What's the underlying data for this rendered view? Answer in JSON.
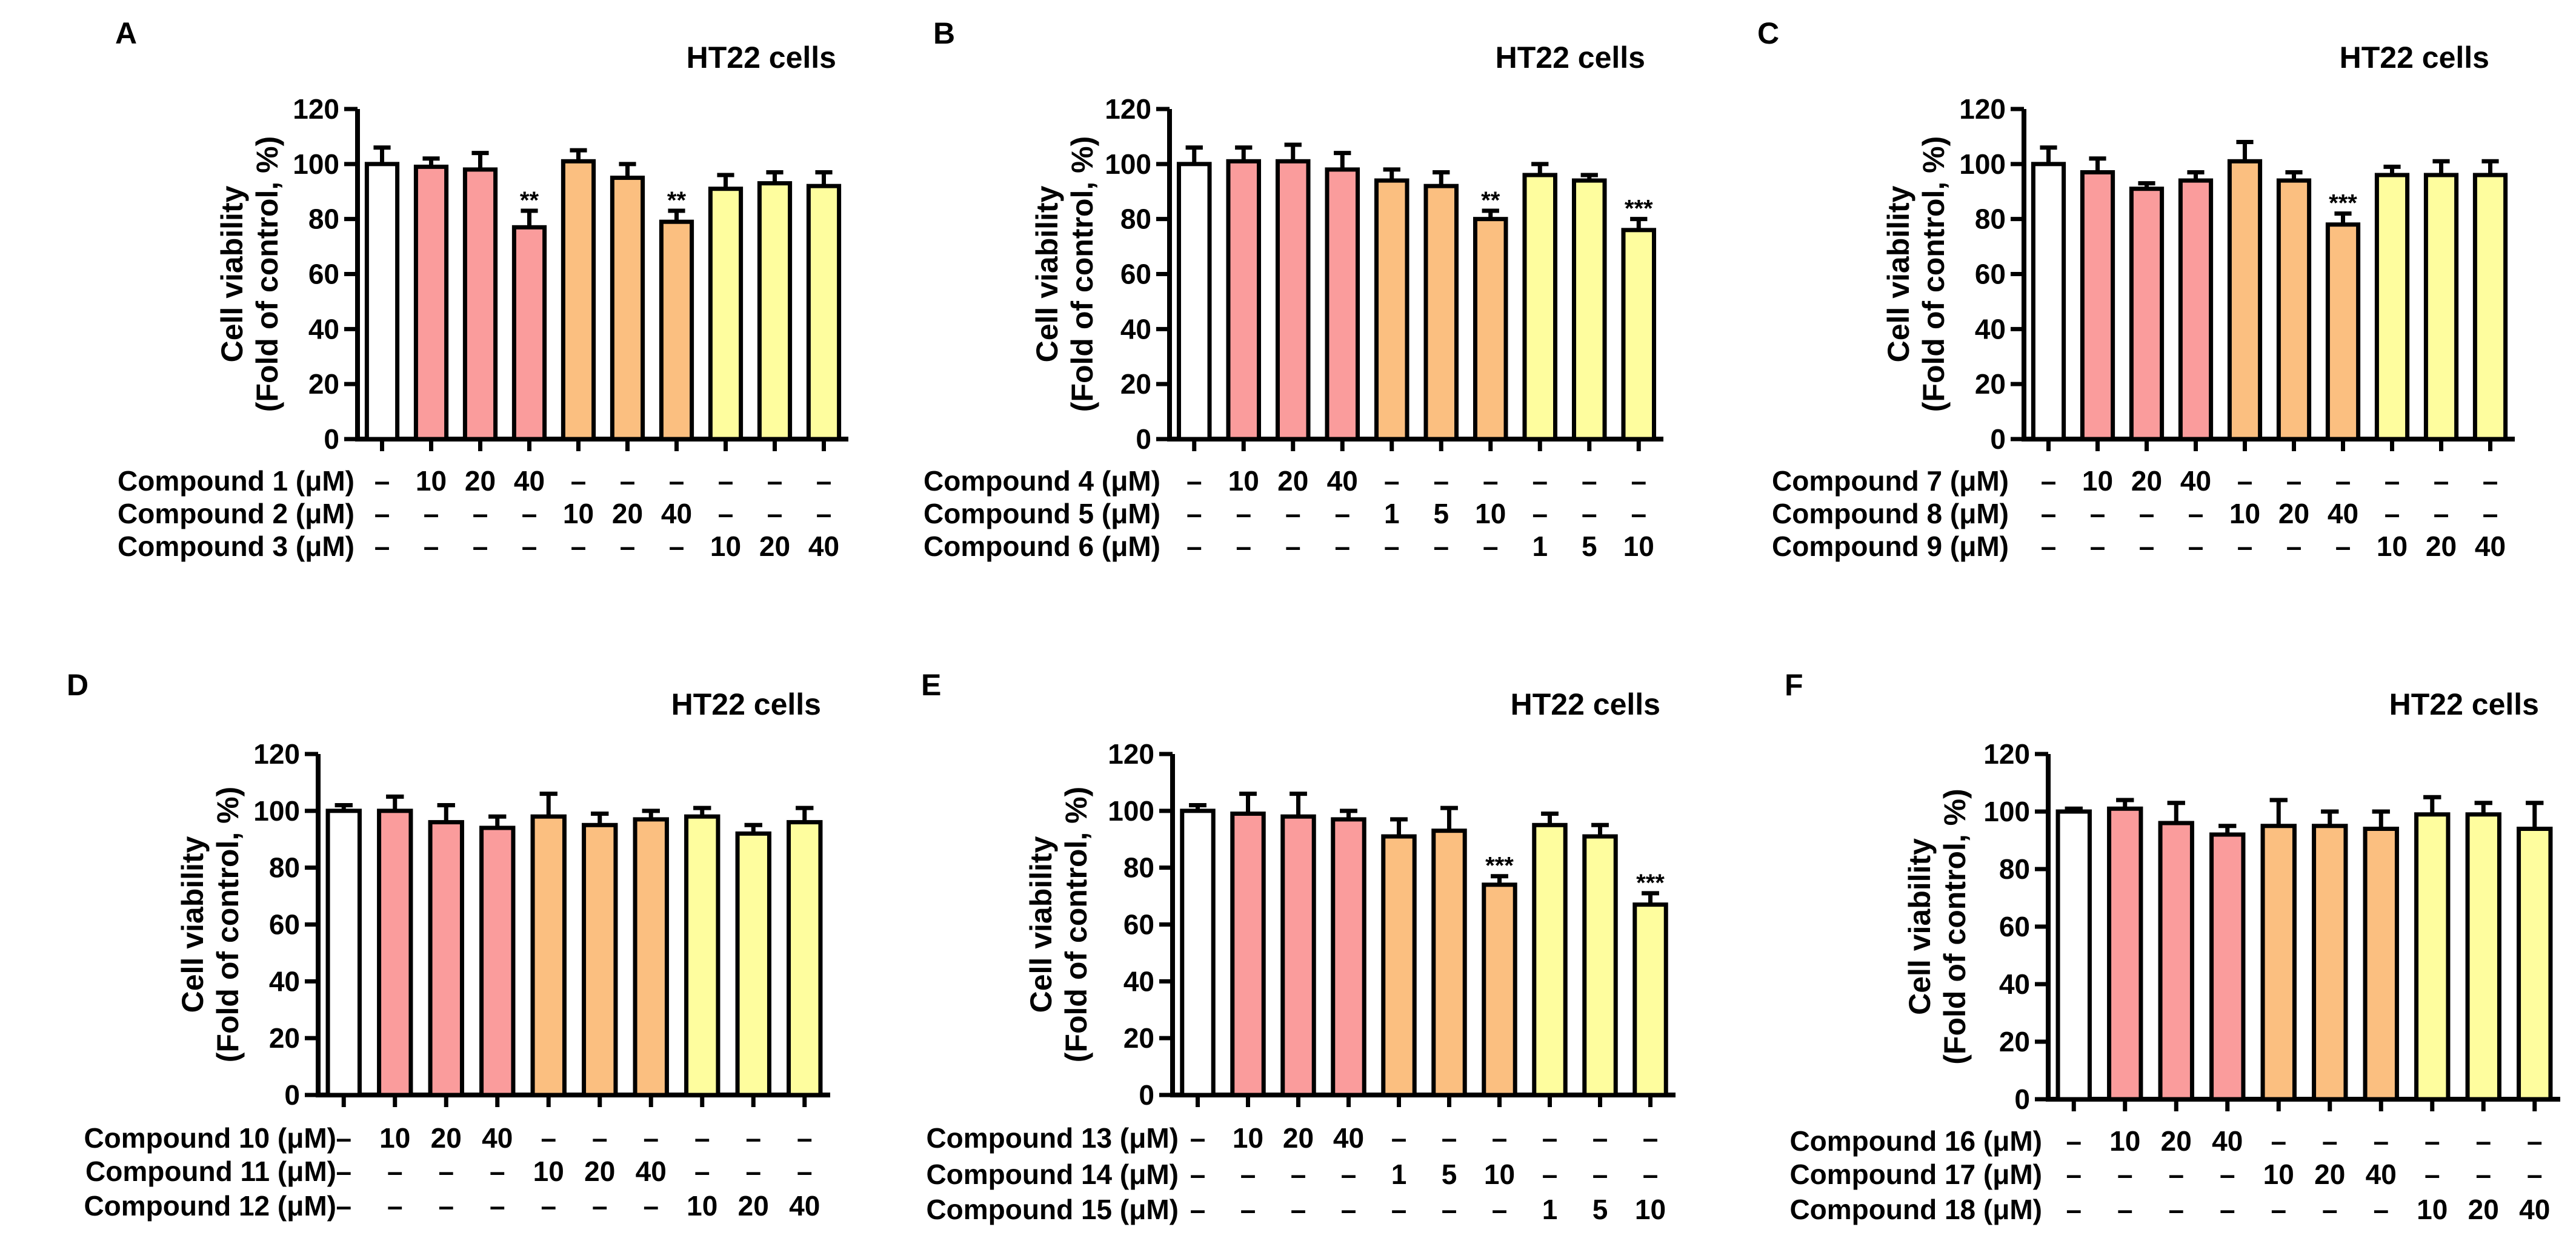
{
  "colors": {
    "control": "#ffffff",
    "pink": "#fa9c9c",
    "orange": "#fbbf80",
    "yellow": "#fefd9e",
    "edge": "#000000"
  },
  "chart_data": [
    {
      "type": "bar",
      "panel": "A",
      "title": "HT22 cells",
      "ylabel_line1": "Cell viability",
      "ylabel_line2": "(Fold of control, %)",
      "ylim": [
        0,
        120
      ],
      "yticks": [
        "0",
        "20",
        "40",
        "60",
        "80",
        "100",
        "120"
      ],
      "values": [
        100,
        99,
        98,
        77,
        101,
        95,
        79,
        91,
        93,
        92
      ],
      "errors": [
        6,
        3,
        6,
        6,
        4,
        5,
        4,
        5,
        4,
        5
      ],
      "colors": [
        "control",
        "pink",
        "pink",
        "pink",
        "orange",
        "orange",
        "orange",
        "yellow",
        "yellow",
        "yellow"
      ],
      "significance": [
        "",
        "",
        "",
        "**",
        "",
        "",
        "**",
        "",
        "",
        ""
      ],
      "rows": [
        {
          "label": "Compound 1 (μM)",
          "doses": [
            "–",
            "10",
            "20",
            "40",
            "–",
            "–",
            "–",
            "–",
            "–",
            "–"
          ]
        },
        {
          "label": "Compound 2 (μM)",
          "doses": [
            "–",
            "–",
            "–",
            "–",
            "10",
            "20",
            "40",
            "–",
            "–",
            "–"
          ]
        },
        {
          "label": "Compound 3 (μM)",
          "doses": [
            "–",
            "–",
            "–",
            "–",
            "–",
            "–",
            "–",
            "10",
            "20",
            "40"
          ]
        }
      ]
    },
    {
      "type": "bar",
      "panel": "B",
      "title": "HT22 cells",
      "ylabel_line1": "Cell viability",
      "ylabel_line2": "(Fold of control, %)",
      "ylim": [
        0,
        120
      ],
      "yticks": [
        "0",
        "20",
        "40",
        "60",
        "80",
        "100",
        "120"
      ],
      "values": [
        100,
        101,
        101,
        98,
        94,
        92,
        80,
        96,
        94,
        76
      ],
      "errors": [
        6,
        5,
        6,
        6,
        4,
        5,
        3,
        4,
        2,
        4
      ],
      "colors": [
        "control",
        "pink",
        "pink",
        "pink",
        "orange",
        "orange",
        "orange",
        "yellow",
        "yellow",
        "yellow"
      ],
      "significance": [
        "",
        "",
        "",
        "",
        "",
        "",
        "**",
        "",
        "",
        "***"
      ],
      "rows": [
        {
          "label": "Compound 4 (μM)",
          "doses": [
            "–",
            "10",
            "20",
            "40",
            "–",
            "–",
            "–",
            "–",
            "–",
            "–"
          ]
        },
        {
          "label": "Compound 5 (μM)",
          "doses": [
            "–",
            "–",
            "–",
            "–",
            "1",
            "5",
            "10",
            "–",
            "–",
            "–"
          ]
        },
        {
          "label": "Compound 6 (μM)",
          "doses": [
            "–",
            "–",
            "–",
            "–",
            "–",
            "–",
            "–",
            "1",
            "5",
            "10"
          ]
        }
      ]
    },
    {
      "type": "bar",
      "panel": "C",
      "title": "HT22 cells",
      "ylabel_line1": "Cell viability",
      "ylabel_line2": "(Fold of control, %)",
      "ylim": [
        0,
        120
      ],
      "yticks": [
        "0",
        "20",
        "40",
        "60",
        "80",
        "100",
        "120"
      ],
      "values": [
        100,
        97,
        91,
        94,
        101,
        94,
        78,
        96,
        96,
        96
      ],
      "errors": [
        6,
        5,
        2,
        3,
        7,
        3,
        4,
        3,
        5,
        5
      ],
      "colors": [
        "control",
        "pink",
        "pink",
        "pink",
        "orange",
        "orange",
        "orange",
        "yellow",
        "yellow",
        "yellow"
      ],
      "significance": [
        "",
        "",
        "",
        "",
        "",
        "",
        "***",
        "",
        "",
        ""
      ],
      "rows": [
        {
          "label": "Compound 7 (μM)",
          "doses": [
            "–",
            "10",
            "20",
            "40",
            "–",
            "–",
            "–",
            "–",
            "–",
            "–"
          ]
        },
        {
          "label": "Compound 8 (μM)",
          "doses": [
            "–",
            "–",
            "–",
            "–",
            "10",
            "20",
            "40",
            "–",
            "–",
            "–"
          ]
        },
        {
          "label": "Compound 9 (μM)",
          "doses": [
            "–",
            "–",
            "–",
            "–",
            "–",
            "–",
            "–",
            "10",
            "20",
            "40"
          ]
        }
      ]
    },
    {
      "type": "bar",
      "panel": "D",
      "title": "HT22 cells",
      "ylabel_line1": "Cell viability",
      "ylabel_line2": "(Fold of control, %)",
      "ylim": [
        0,
        120
      ],
      "yticks": [
        "0",
        "20",
        "40",
        "60",
        "80",
        "100",
        "120"
      ],
      "values": [
        100,
        100,
        96,
        94,
        98,
        95,
        97,
        98,
        92,
        96
      ],
      "errors": [
        2,
        5,
        6,
        4,
        8,
        4,
        3,
        3,
        3,
        5
      ],
      "colors": [
        "control",
        "pink",
        "pink",
        "pink",
        "orange",
        "orange",
        "orange",
        "yellow",
        "yellow",
        "yellow"
      ],
      "significance": [
        "",
        "",
        "",
        "",
        "",
        "",
        "",
        "",
        "",
        ""
      ],
      "rows": [
        {
          "label": "Compound 10 (μM)",
          "doses": [
            "–",
            "10",
            "20",
            "40",
            "–",
            "–",
            "–",
            "–",
            "–",
            "–"
          ]
        },
        {
          "label": "Compound 11 (μM)",
          "doses": [
            "–",
            "–",
            "–",
            "–",
            "10",
            "20",
            "40",
            "–",
            "–",
            "–"
          ]
        },
        {
          "label": "Compound 12 (μM)",
          "doses": [
            "–",
            "–",
            "–",
            "–",
            "–",
            "–",
            "–",
            "10",
            "20",
            "40"
          ]
        }
      ]
    },
    {
      "type": "bar",
      "panel": "E",
      "title": "HT22 cells",
      "ylabel_line1": "Cell viability",
      "ylabel_line2": "(Fold of control, %)",
      "ylim": [
        0,
        120
      ],
      "yticks": [
        "0",
        "20",
        "40",
        "60",
        "80",
        "100",
        "120"
      ],
      "values": [
        100,
        99,
        98,
        97,
        91,
        93,
        74,
        95,
        91,
        67
      ],
      "errors": [
        2,
        7,
        8,
        3,
        6,
        8,
        3,
        4,
        4,
        4
      ],
      "colors": [
        "control",
        "pink",
        "pink",
        "pink",
        "orange",
        "orange",
        "orange",
        "yellow",
        "yellow",
        "yellow"
      ],
      "significance": [
        "",
        "",
        "",
        "",
        "",
        "",
        "***",
        "",
        "",
        "***"
      ],
      "rows": [
        {
          "label": "Compound 13 (μM)",
          "doses": [
            "–",
            "10",
            "20",
            "40",
            "–",
            "–",
            "–",
            "–",
            "–",
            "–"
          ]
        },
        {
          "label": "Compound 14 (μM)",
          "doses": [
            "–",
            "–",
            "–",
            "–",
            "1",
            "5",
            "10",
            "–",
            "–",
            "–"
          ]
        },
        {
          "label": "Compound 15 (μM)",
          "doses": [
            "–",
            "–",
            "–",
            "–",
            "–",
            "–",
            "–",
            "1",
            "5",
            "10"
          ]
        }
      ]
    },
    {
      "type": "bar",
      "panel": "F",
      "title": "HT22 cells",
      "ylabel_line1": "Cell viability",
      "ylabel_line2": "(Fold of control, %)",
      "ylim": [
        0,
        120
      ],
      "yticks": [
        "0",
        "20",
        "40",
        "60",
        "80",
        "100",
        "120"
      ],
      "values": [
        100,
        101,
        96,
        92,
        95,
        95,
        94,
        99,
        99,
        94
      ],
      "errors": [
        1,
        3,
        7,
        3,
        9,
        5,
        6,
        6,
        4,
        9
      ],
      "colors": [
        "control",
        "pink",
        "pink",
        "pink",
        "orange",
        "orange",
        "orange",
        "yellow",
        "yellow",
        "yellow"
      ],
      "significance": [
        "",
        "",
        "",
        "",
        "",
        "",
        "",
        "",
        "",
        ""
      ],
      "rows": [
        {
          "label": "Compound 16 (μM)",
          "doses": [
            "–",
            "10",
            "20",
            "40",
            "–",
            "–",
            "–",
            "–",
            "–",
            "–"
          ]
        },
        {
          "label": "Compound 17 (μM)",
          "doses": [
            "–",
            "–",
            "–",
            "–",
            "10",
            "20",
            "40",
            "–",
            "–",
            "–"
          ]
        },
        {
          "label": "Compound 18 (μM)",
          "doses": [
            "–",
            "–",
            "–",
            "–",
            "–",
            "–",
            "–",
            "10",
            "20",
            "40"
          ]
        }
      ]
    }
  ]
}
